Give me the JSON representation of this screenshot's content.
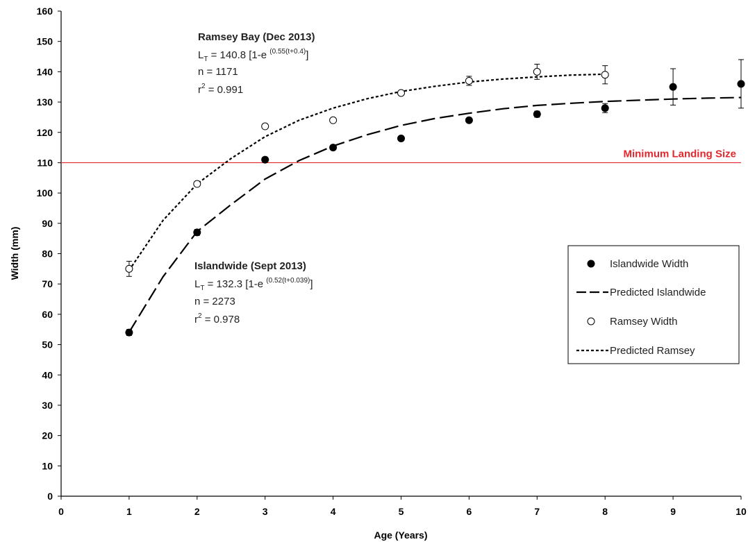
{
  "chart_data": {
    "type": "scatter",
    "xlabel": "Age (Years)",
    "ylabel": "Width (mm)",
    "xlim": [
      0,
      10
    ],
    "ylim": [
      0,
      160
    ],
    "xticks": [
      0,
      1,
      2,
      3,
      4,
      5,
      6,
      7,
      8,
      9,
      10
    ],
    "yticks": [
      0,
      10,
      20,
      30,
      40,
      50,
      60,
      70,
      80,
      90,
      100,
      110,
      120,
      130,
      140,
      150,
      160
    ],
    "grid": false,
    "legend_position": "right",
    "series": [
      {
        "name": "Islandwide Width",
        "kind": "points",
        "marker": "filled-circle",
        "color": "#000000",
        "x": [
          1,
          2,
          3,
          4,
          5,
          6,
          7,
          8,
          9,
          10
        ],
        "y": [
          54,
          87,
          111,
          115,
          118,
          124,
          126,
          128,
          135,
          136
        ],
        "error": [
          1,
          1,
          0.5,
          0.5,
          0.5,
          0.5,
          1,
          1.5,
          6,
          8
        ]
      },
      {
        "name": "Predicted Islandwide",
        "kind": "curve",
        "dash": "long-dash",
        "color": "#000000",
        "x": [
          1,
          1.5,
          2,
          2.5,
          3,
          3.5,
          4,
          4.5,
          5,
          5.5,
          6,
          6.5,
          7,
          7.5,
          8,
          8.5,
          9,
          9.5,
          10
        ],
        "y": [
          54.1,
          72.4,
          87.3,
          96.2,
          104.6,
          110.7,
          115.5,
          119.2,
          122.3,
          124.6,
          126.3,
          127.8,
          128.9,
          129.6,
          130.2,
          130.6,
          131.0,
          131.3,
          131.5
        ]
      },
      {
        "name": "Ramsey Width",
        "kind": "points",
        "marker": "open-circle",
        "color": "#000000",
        "x": [
          1,
          2,
          3,
          4,
          5,
          6,
          7,
          8
        ],
        "y": [
          75,
          103,
          122,
          124,
          133,
          137,
          140,
          139
        ],
        "error": [
          2.5,
          0.5,
          0.5,
          0.5,
          0.5,
          1.5,
          2.5,
          3
        ]
      },
      {
        "name": "Predicted Ramsey",
        "kind": "curve",
        "dash": "short-dash",
        "color": "#000000",
        "x": [
          1,
          1.5,
          2,
          2.5,
          3,
          3.5,
          4,
          4.5,
          5,
          5.5,
          6,
          6.5,
          7,
          7.5,
          8
        ],
        "y": [
          74.5,
          91.0,
          103.0,
          111.4,
          118.6,
          124.0,
          128.0,
          131.1,
          133.5,
          135.2,
          136.6,
          137.6,
          138.3,
          138.9,
          139.2
        ]
      }
    ],
    "reference_line": {
      "y": 110,
      "label": "Minimum Landing Size",
      "color": "#e3262d"
    },
    "annotations": [
      {
        "id": "ramsey",
        "title": "Ramsey Bay (Dec 2013)",
        "eq_prefix": "L",
        "eq_sub": "T",
        "eq_main": " = 140.8 [1-e ",
        "eq_sup": "(0.55(t+0.4)",
        "eq_close": "]",
        "n": "n = 1171",
        "r_prefix": "r",
        "r_sup": "2",
        "r_value": " = 0.991"
      },
      {
        "id": "islandwide",
        "title": "Islandwide (Sept 2013)",
        "eq_prefix": "L",
        "eq_sub": "T",
        "eq_main": " = 132.3 [1-e ",
        "eq_sup": "(0.52(t+0.039)",
        "eq_close": "]",
        "n": "n = 2273",
        "r_prefix": "r",
        "r_sup": "2",
        "r_value": " = 0.978"
      }
    ]
  }
}
